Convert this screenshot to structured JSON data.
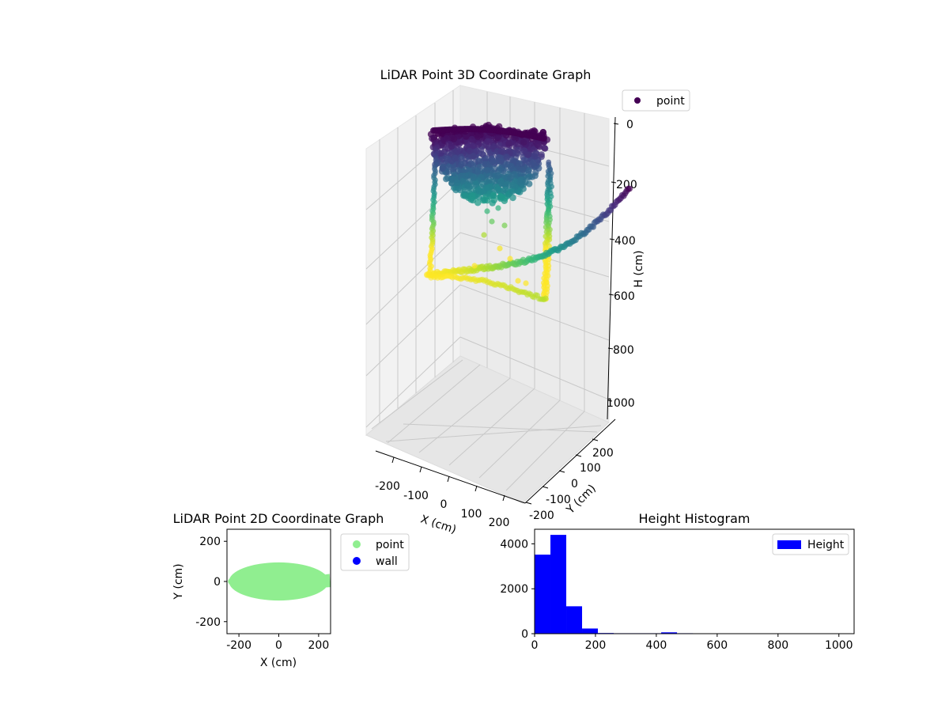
{
  "chart_data": [
    {
      "type": "scatter3d",
      "title": "LiDAR Point 3D Coordinate Graph",
      "xlabel": "X (cm)",
      "ylabel": "Y (cm)",
      "zlabel": "H (cm)",
      "x_ticks": [
        -200,
        -100,
        0,
        100,
        200
      ],
      "y_ticks": [
        -200,
        -100,
        0,
        100,
        200
      ],
      "z_ticks": [
        0,
        200,
        400,
        600,
        800,
        1000
      ],
      "xlim": [
        -260,
        260
      ],
      "ylim": [
        -260,
        260
      ],
      "zlim": [
        0,
        1050
      ],
      "z_inverted": true,
      "colormap": "viridis",
      "legend": [
        "point"
      ],
      "legend_color": "#440154",
      "legend_position": "upper-right"
    },
    {
      "type": "scatter",
      "title": "LiDAR Point 2D Coordinate Graph",
      "xlabel": "X (cm)",
      "ylabel": "Y (cm)",
      "xlim": [
        -260,
        260
      ],
      "ylim": [
        -260,
        260
      ],
      "x_ticks": [
        -200,
        0,
        200
      ],
      "y_ticks": [
        -200,
        0,
        200
      ],
      "series": [
        {
          "name": "point",
          "color": "#90ee90",
          "shape": "ellipse",
          "center": [
            0,
            0
          ],
          "x_halfwidth": 250,
          "y_halfwidth": 95
        },
        {
          "name": "wall",
          "color": "#0000ff",
          "values": []
        }
      ],
      "legend_position": "outside-right"
    },
    {
      "type": "bar",
      "title": "Height Histogram",
      "series_name": "Height",
      "color": "#0000ff",
      "bin_edges": [
        0,
        52,
        104,
        156,
        208,
        260,
        312,
        364,
        416,
        468,
        520,
        572,
        624,
        676,
        728,
        780,
        832,
        884,
        936,
        988,
        1040
      ],
      "values": [
        3520,
        4400,
        1220,
        230,
        30,
        20,
        20,
        20,
        60,
        20,
        0,
        0,
        0,
        0,
        0,
        0,
        0,
        0,
        0,
        0
      ],
      "x_ticks": [
        0,
        200,
        400,
        600,
        800,
        1000
      ],
      "y_ticks": [
        0,
        2000,
        4000
      ],
      "xlim": [
        0,
        1050
      ],
      "ylim": [
        0,
        4650
      ],
      "legend_position": "upper-right"
    }
  ]
}
